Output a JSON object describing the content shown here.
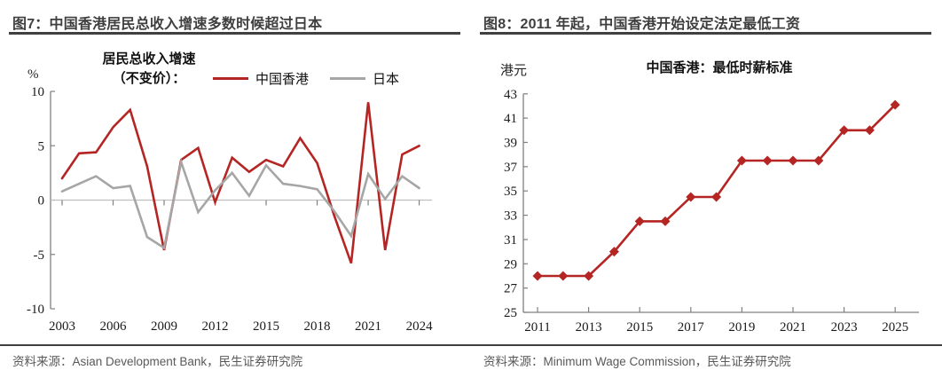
{
  "accent_color": "#b42523",
  "secondary_color": "#a6a6a6",
  "panels": [
    {
      "title": "图7：中国香港居民总收入增速多数时候超过日本",
      "unit_label": "%",
      "legend_heading": {
        "line1": "居民总收入增速",
        "line2": "（不变价）："
      },
      "source": "资料来源：Asian Development Bank，民生证券研究院"
    },
    {
      "title": "图8：2011 年起，中国香港开始设定法定最低工资",
      "unit_label": "港元",
      "inner_title": "中国香港：最低时薪标准",
      "source": "资料来源：Minimum Wage Commission，民生证券研究院"
    }
  ],
  "chart_data": [
    {
      "type": "line",
      "title": "图7：中国香港居民总收入增速多数时候超过日本",
      "subtitle": "居民总收入增速（不变价）：",
      "xlabel": "",
      "ylabel": "%",
      "x": [
        2003,
        2004,
        2005,
        2006,
        2007,
        2008,
        2009,
        2010,
        2011,
        2012,
        2013,
        2014,
        2015,
        2016,
        2017,
        2018,
        2019,
        2020,
        2021,
        2022,
        2023,
        2024
      ],
      "series": [
        {
          "name": "中国香港",
          "color": "#b42523",
          "values": [
            2.0,
            4.3,
            4.4,
            6.7,
            8.3,
            3.1,
            -4.6,
            3.7,
            4.8,
            -0.2,
            3.9,
            2.6,
            3.7,
            3.1,
            5.7,
            3.4,
            -1.4,
            -5.8,
            9.0,
            -4.6,
            4.2,
            5.0
          ]
        },
        {
          "name": "日本",
          "color": "#a6a6a6",
          "values": [
            0.8,
            1.5,
            2.2,
            1.1,
            1.3,
            -3.4,
            -4.4,
            3.5,
            -1.1,
            0.9,
            2.5,
            0.4,
            3.2,
            1.5,
            1.3,
            1.0,
            -1.0,
            -3.3,
            2.4,
            0.1,
            2.2,
            1.1
          ]
        }
      ],
      "ylim": [
        -10,
        10
      ],
      "yticks": [
        10,
        5,
        0,
        -5,
        -10
      ],
      "xticks": [
        2003,
        2006,
        2009,
        2012,
        2015,
        2018,
        2021,
        2024
      ],
      "grid": false,
      "legend_position": "top",
      "source": "资料来源：Asian Development Bank，民生证券研究院"
    },
    {
      "type": "line",
      "title": "图8：2011 年起，中国香港开始设定法定最低工资",
      "subtitle": "中国香港：最低时薪标准",
      "xlabel": "",
      "ylabel": "港元",
      "x": [
        2011,
        2012,
        2013,
        2014,
        2015,
        2016,
        2017,
        2018,
        2019,
        2020,
        2021,
        2022,
        2023,
        2024,
        2025
      ],
      "series": [
        {
          "name": "中国香港：最低时薪标准",
          "color": "#b42523",
          "marker": "diamond",
          "values": [
            28,
            28,
            28,
            30,
            32.5,
            32.5,
            34.5,
            34.5,
            37.5,
            37.5,
            37.5,
            37.5,
            40,
            40,
            42.1
          ]
        }
      ],
      "ylim": [
        25,
        43
      ],
      "yticks": [
        43,
        41,
        39,
        37,
        35,
        33,
        31,
        29,
        27,
        25
      ],
      "xticks": [
        2011,
        2013,
        2015,
        2017,
        2019,
        2021,
        2023,
        2025
      ],
      "grid": false,
      "legend_position": "none",
      "source": "资料来源：Minimum Wage Commission，民生证券研究院"
    }
  ]
}
